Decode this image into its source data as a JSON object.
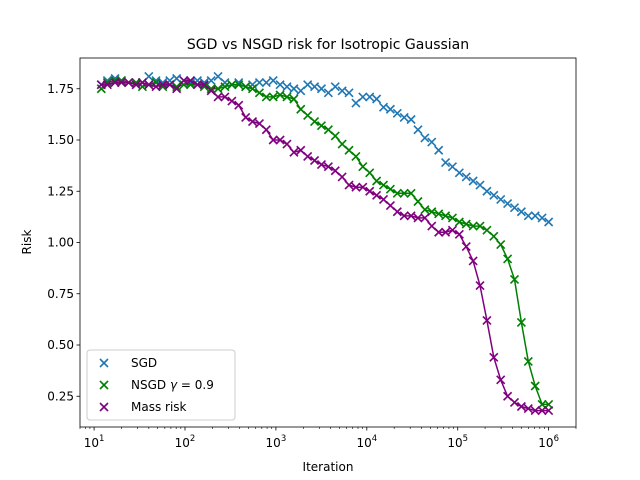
{
  "chart_data": {
    "type": "scatter",
    "title": "SGD vs NSGD risk for Isotropic Gaussian",
    "xlabel": "Iteration",
    "ylabel": "Risk",
    "xscale": "log",
    "xlim": [
      7,
      2000000
    ],
    "ylim": [
      0.1,
      1.9
    ],
    "xticks": [
      {
        "value": 10,
        "base": "10",
        "exp": "1"
      },
      {
        "value": 100,
        "base": "10",
        "exp": "2"
      },
      {
        "value": 1000,
        "base": "10",
        "exp": "3"
      },
      {
        "value": 10000,
        "base": "10",
        "exp": "4"
      },
      {
        "value": 100000,
        "base": "10",
        "exp": "5"
      },
      {
        "value": 1000000,
        "base": "10",
        "exp": "6"
      }
    ],
    "yticks": [
      "0.25",
      "0.50",
      "0.75",
      "1.00",
      "1.25",
      "1.50",
      "1.75"
    ],
    "grid": false,
    "legend_placement": "lower-left",
    "series": [
      {
        "name": "SGD",
        "color": "#1f77b4",
        "line": false,
        "x": [
          12,
          14,
          17,
          20,
          24,
          29,
          34,
          40,
          48,
          57,
          68,
          81,
          97,
          115,
          137,
          163,
          194,
          231,
          275,
          328,
          390,
          465,
          553,
          659,
          784,
          934,
          1112,
          1324,
          1577,
          1877,
          2236,
          2662,
          3170,
          3775,
          4495,
          5353,
          6374,
          7590,
          9038,
          10762,
          12816,
          15261,
          18173,
          21641,
          25770,
          30687,
          36542,
          43514,
          51817,
          61704,
          73477,
          87496,
          104190,
          124070,
          147740,
          175930,
          209490,
          249460,
          297060,
          353740,
          421230,
          501600,
          597300,
          711270,
          846980,
          1000000
        ],
        "y": [
          1.77,
          1.79,
          1.8,
          1.79,
          1.78,
          1.77,
          1.78,
          1.81,
          1.79,
          1.78,
          1.79,
          1.8,
          1.79,
          1.78,
          1.79,
          1.78,
          1.79,
          1.81,
          1.78,
          1.77,
          1.78,
          1.76,
          1.77,
          1.78,
          1.78,
          1.79,
          1.77,
          1.76,
          1.75,
          1.74,
          1.77,
          1.76,
          1.75,
          1.73,
          1.76,
          1.74,
          1.73,
          1.68,
          1.71,
          1.71,
          1.7,
          1.66,
          1.65,
          1.63,
          1.61,
          1.6,
          1.55,
          1.51,
          1.49,
          1.45,
          1.39,
          1.37,
          1.34,
          1.32,
          1.3,
          1.28,
          1.25,
          1.23,
          1.21,
          1.19,
          1.17,
          1.15,
          1.13,
          1.13,
          1.12,
          1.1
        ]
      },
      {
        "name": "NSGD γ = 0.9",
        "label_prefix": "NSGD ",
        "label_symbol": "γ",
        "label_suffix": " = 0.9",
        "color": "#008000",
        "line": true,
        "x": [
          12,
          14,
          17,
          20,
          24,
          29,
          34,
          40,
          48,
          57,
          68,
          81,
          97,
          115,
          137,
          163,
          194,
          231,
          275,
          328,
          390,
          465,
          553,
          659,
          784,
          934,
          1112,
          1324,
          1577,
          1877,
          2236,
          2662,
          3170,
          3775,
          4495,
          5353,
          6374,
          7590,
          9038,
          10762,
          12816,
          15261,
          18173,
          21641,
          25770,
          30687,
          36542,
          43514,
          51817,
          61704,
          73477,
          87496,
          104190,
          124070,
          147740,
          175930,
          209490,
          249460,
          297060,
          353740,
          421230,
          501600,
          597300,
          711270,
          846980,
          1000000
        ],
        "y": [
          1.75,
          1.78,
          1.79,
          1.79,
          1.78,
          1.78,
          1.76,
          1.77,
          1.78,
          1.76,
          1.77,
          1.76,
          1.77,
          1.77,
          1.77,
          1.76,
          1.75,
          1.75,
          1.76,
          1.77,
          1.77,
          1.76,
          1.75,
          1.73,
          1.71,
          1.71,
          1.72,
          1.71,
          1.7,
          1.65,
          1.62,
          1.59,
          1.57,
          1.55,
          1.52,
          1.48,
          1.45,
          1.42,
          1.37,
          1.34,
          1.3,
          1.28,
          1.26,
          1.24,
          1.24,
          1.24,
          1.2,
          1.16,
          1.15,
          1.14,
          1.13,
          1.12,
          1.1,
          1.09,
          1.08,
          1.08,
          1.06,
          1.03,
          0.99,
          0.92,
          0.82,
          0.61,
          0.42,
          0.3,
          0.21,
          0.21
        ]
      },
      {
        "name": "Mass risk",
        "color": "#800080",
        "line": true,
        "x": [
          12,
          14,
          17,
          20,
          24,
          29,
          34,
          40,
          48,
          57,
          68,
          81,
          97,
          115,
          137,
          163,
          194,
          231,
          275,
          328,
          390,
          465,
          553,
          659,
          784,
          934,
          1112,
          1324,
          1577,
          1877,
          2236,
          2662,
          3170,
          3775,
          4495,
          5353,
          6374,
          7590,
          9038,
          10762,
          12816,
          15261,
          18173,
          21641,
          25770,
          30687,
          36542,
          43514,
          51817,
          61704,
          73477,
          87496,
          104190,
          124070,
          147740,
          175930,
          209490,
          249460,
          297060,
          353740,
          421230,
          501600,
          597300,
          711270,
          846980,
          1000000
        ],
        "y": [
          1.77,
          1.77,
          1.78,
          1.78,
          1.78,
          1.77,
          1.78,
          1.77,
          1.76,
          1.77,
          1.77,
          1.75,
          1.79,
          1.79,
          1.77,
          1.77,
          1.74,
          1.71,
          1.71,
          1.69,
          1.67,
          1.61,
          1.59,
          1.58,
          1.55,
          1.5,
          1.5,
          1.48,
          1.44,
          1.45,
          1.42,
          1.4,
          1.38,
          1.37,
          1.35,
          1.32,
          1.28,
          1.27,
          1.27,
          1.25,
          1.23,
          1.21,
          1.18,
          1.15,
          1.13,
          1.13,
          1.12,
          1.12,
          1.08,
          1.05,
          1.05,
          1.06,
          1.04,
          0.98,
          0.91,
          0.79,
          0.62,
          0.44,
          0.33,
          0.25,
          0.22,
          0.2,
          0.19,
          0.18,
          0.18,
          0.18
        ]
      }
    ]
  }
}
